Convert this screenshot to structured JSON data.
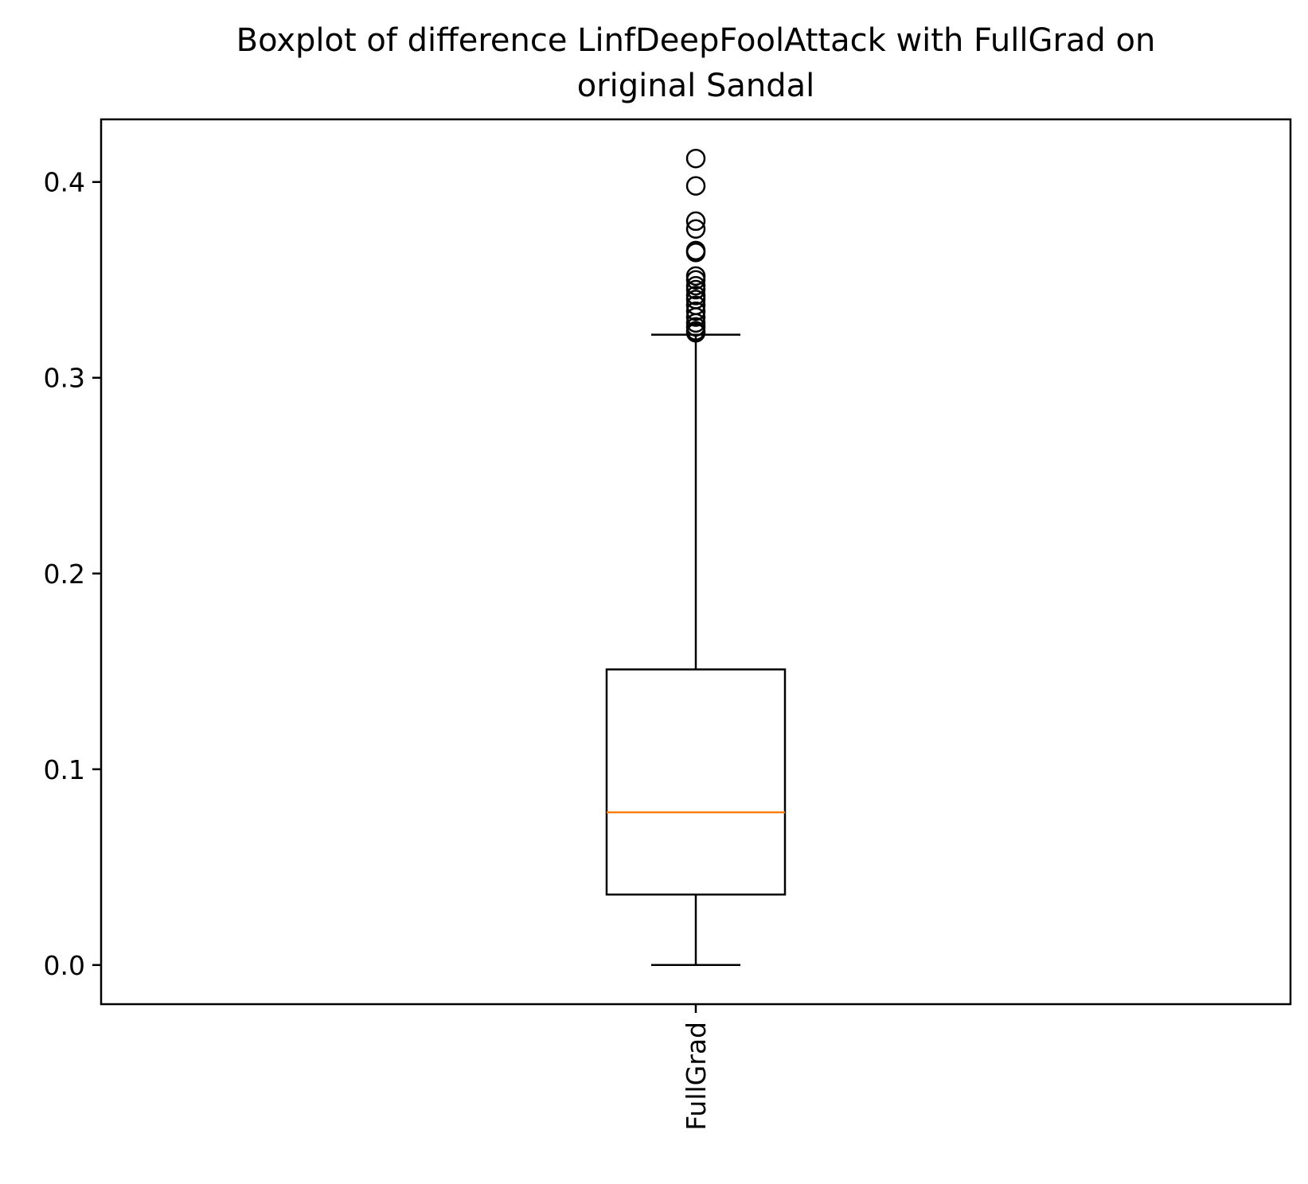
{
  "chart_data": {
    "type": "boxplot",
    "title": "Boxplot of difference LinfDeepFoolAttack with FullGrad on original Sandal",
    "title_lines": [
      "Boxplot of difference LinfDeepFoolAttack with FullGrad on",
      "original Sandal"
    ],
    "xlabel": "",
    "ylabel": "",
    "ylim": [
      -0.02,
      0.432
    ],
    "yticks": [
      0.0,
      0.1,
      0.2,
      0.3,
      0.4
    ],
    "ytick_labels": [
      "0.0",
      "0.1",
      "0.2",
      "0.3",
      "0.4"
    ],
    "categories": [
      "FullGrad"
    ],
    "xtick_rotation": 90,
    "grid": false,
    "legend": "none",
    "boxes": [
      {
        "category": "FullGrad",
        "whisker_low": 0.0,
        "q1": 0.036,
        "median": 0.078,
        "q3": 0.151,
        "whisker_high": 0.322,
        "outliers": [
          0.412,
          0.398,
          0.38,
          0.376,
          0.365,
          0.364,
          0.352,
          0.35,
          0.347,
          0.345,
          0.342,
          0.34,
          0.337,
          0.334,
          0.331,
          0.328,
          0.326,
          0.324,
          0.323
        ]
      }
    ],
    "colors": {
      "box": "#000000",
      "median": "#ff7f0e",
      "outlier": "#000000",
      "background": "#ffffff"
    }
  }
}
